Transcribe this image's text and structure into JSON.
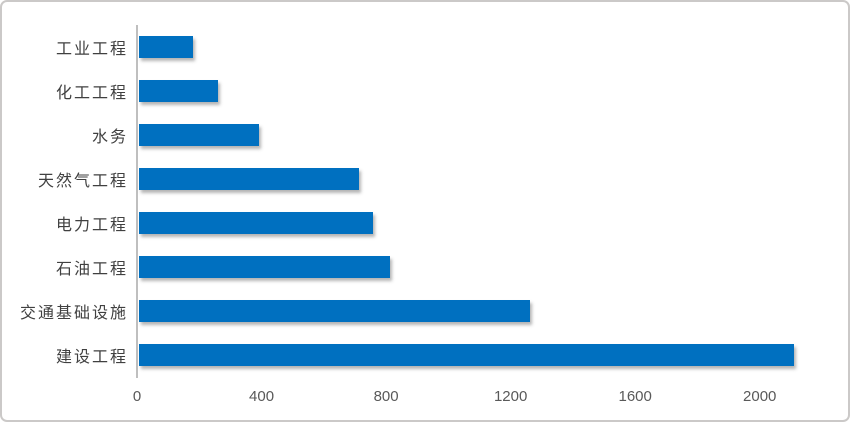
{
  "chart_data": {
    "type": "bar",
    "orientation": "horizontal",
    "title": "",
    "xlabel": "",
    "ylabel": "",
    "categories_top_to_bottom": [
      "工业工程",
      "化工工程",
      "水务",
      "天然气工程",
      "电力工程",
      "石油工程",
      "交通基础设施",
      "建设工程"
    ],
    "values": [
      175,
      255,
      385,
      705,
      750,
      805,
      1255,
      2105
    ],
    "x_ticks": [
      0,
      400,
      800,
      1200,
      1600,
      2000
    ],
    "xlim": [
      0,
      2200
    ],
    "grid": false,
    "legend": false,
    "bar_color": "#0070c0"
  },
  "colors": {
    "bar": "#0070c0",
    "axis_line": "#bfbfbf",
    "tick_label": "#595959",
    "category_label": "#404040",
    "frame_border": "#cbc9c8",
    "background": "#ffffff"
  }
}
